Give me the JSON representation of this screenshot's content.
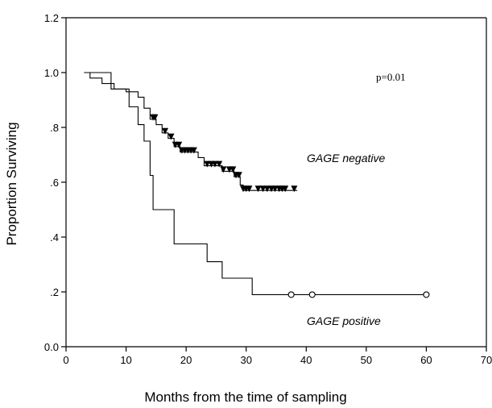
{
  "chart_data": {
    "type": "line",
    "title": "",
    "xlabel": "Months from the time of sampling",
    "ylabel": "Proportion Surviving",
    "xlim": [
      0,
      70
    ],
    "ylim": [
      0,
      1.2
    ],
    "x_ticks": [
      0,
      10,
      20,
      30,
      40,
      50,
      60,
      70
    ],
    "x_tick_labels": [
      "0",
      "10",
      "20",
      "30",
      "40",
      "50",
      "60",
      "70"
    ],
    "y_ticks": [
      0,
      0.2,
      0.4,
      0.6,
      0.8,
      1.0,
      1.2
    ],
    "y_tick_labels": [
      "0.0",
      ".2",
      ".4",
      ".6",
      ".8",
      "1.0",
      "1.2"
    ],
    "grid": false,
    "legend": "none",
    "annotations": {
      "p_value": "p=0.01",
      "negative_label": "GAGE negative",
      "positive_label": "GAGE positive"
    },
    "series": [
      {
        "name": "GAGE negative",
        "step": true,
        "points": [
          [
            3,
            1.0
          ],
          [
            4,
            0.98
          ],
          [
            6,
            0.96
          ],
          [
            8,
            0.94
          ],
          [
            10,
            0.93
          ],
          [
            12,
            0.91
          ],
          [
            13,
            0.87
          ],
          [
            14,
            0.83
          ],
          [
            15,
            0.81
          ],
          [
            16,
            0.78
          ],
          [
            17,
            0.76
          ],
          [
            18,
            0.73
          ],
          [
            19,
            0.71
          ],
          [
            22,
            0.69
          ],
          [
            23,
            0.66
          ],
          [
            26,
            0.64
          ],
          [
            28,
            0.62
          ],
          [
            29,
            0.59
          ],
          [
            29.5,
            0.57
          ],
          [
            38.5,
            0.57
          ]
        ],
        "censored_marker": "triangle-down",
        "censored_x": [
          14.5,
          14.8,
          16.5,
          17.5,
          18.2,
          18.8,
          19.3,
          19.8,
          20.3,
          20.8,
          21.3,
          23.5,
          24.2,
          24.8,
          25.5,
          26.2,
          27.2,
          27.8,
          28.3,
          28.8,
          29.5,
          30.0,
          30.5,
          32.0,
          32.8,
          33.5,
          34.2,
          34.8,
          35.5,
          36.0,
          36.5,
          38.0
        ]
      },
      {
        "name": "GAGE positive",
        "step": true,
        "points": [
          [
            3,
            1.0
          ],
          [
            7.5,
            0.94
          ],
          [
            10.5,
            0.875
          ],
          [
            12,
            0.81
          ],
          [
            13,
            0.75
          ],
          [
            14,
            0.625
          ],
          [
            14.5,
            0.5
          ],
          [
            18,
            0.375
          ],
          [
            23.5,
            0.31
          ],
          [
            26,
            0.25
          ],
          [
            31,
            0.19
          ],
          [
            60,
            0.19
          ]
        ],
        "censored_marker": "circle-open",
        "censored_x": [
          37.5,
          41,
          60
        ]
      }
    ]
  }
}
